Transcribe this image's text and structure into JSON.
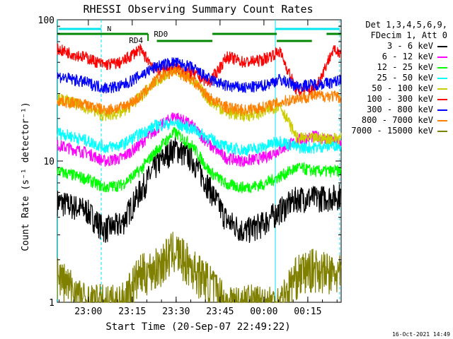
{
  "chart_data": {
    "type": "line",
    "title": "RHESSI Observing Summary Count Rates",
    "xlabel": "Start Time (20-Sep-07 22:49:22)",
    "ylabel": "Count Rate (s⁻¹ detector⁻¹)",
    "yscale": "log",
    "ylim": [
      1,
      100
    ],
    "y_ticks": [
      "1",
      "10",
      "100"
    ],
    "x_ticks": [
      "23:00",
      "23:15",
      "23:30",
      "23:45",
      "00:00",
      "00:15"
    ],
    "x_tick_minutes": [
      10.6,
      25.6,
      40.6,
      55.6,
      70.6,
      85.6
    ],
    "xlim_minutes": [
      0,
      97
    ],
    "footer_date": "16-Oct-2021 14:49",
    "legend_header": [
      "Det 1,3,4,5,6,9,",
      "FDecim 1, Att 0"
    ],
    "annotations": {
      "night_label": "N",
      "rd0_label": "RD0",
      "rd4_label": "RD4"
    },
    "series": [
      {
        "name": "3 - 6 keV",
        "color": "#000000",
        "x": [
          0,
          10,
          16,
          22,
          28,
          34,
          40,
          46,
          52,
          58,
          64,
          70,
          76,
          82,
          88,
          94,
          97
        ],
        "y": [
          5.2,
          4.5,
          3.3,
          3.6,
          6.0,
          9.5,
          12.5,
          10.5,
          6.5,
          3.8,
          3.2,
          3.6,
          4.5,
          5.5,
          5.5,
          5.6,
          5.8
        ]
      },
      {
        "name": "6 - 12 keV",
        "color": "#ff00ff",
        "x": [
          0,
          10,
          16,
          22,
          28,
          34,
          40,
          46,
          52,
          58,
          64,
          70,
          76,
          82,
          88,
          94,
          97
        ],
        "y": [
          13,
          11.5,
          10,
          10.5,
          13,
          17,
          21,
          18,
          13,
          10.5,
          10,
          10.5,
          12,
          14,
          15,
          14,
          13.5
        ]
      },
      {
        "name": "12 - 25 keV",
        "color": "#00ff00",
        "x": [
          0,
          10,
          16,
          22,
          28,
          34,
          40,
          46,
          52,
          58,
          64,
          70,
          76,
          82,
          88,
          94,
          97
        ],
        "y": [
          8.5,
          7.5,
          6.5,
          6.8,
          8.5,
          12,
          16,
          13,
          8.5,
          6.8,
          6.5,
          6.8,
          7.8,
          9,
          8.5,
          8.5,
          8.5
        ]
      },
      {
        "name": "25 - 50 keV",
        "color": "#00ffff",
        "x": [
          0,
          10,
          16,
          22,
          28,
          34,
          40,
          46,
          52,
          58,
          64,
          70,
          76,
          82,
          88,
          94,
          97
        ],
        "y": [
          16,
          14,
          12.5,
          13,
          15.5,
          18,
          18.5,
          17,
          14.5,
          12.5,
          12,
          12.5,
          14,
          12.5,
          12.5,
          13,
          13
        ]
      },
      {
        "name": "50 - 100 keV",
        "color": "#cccc00",
        "x": [
          0,
          10,
          16,
          22,
          28,
          34,
          40,
          46,
          52,
          58,
          64,
          70,
          76,
          82,
          88,
          94,
          97
        ],
        "y": [
          28,
          24,
          21,
          22,
          28,
          37,
          45,
          38,
          27,
          22,
          21,
          22,
          25,
          14.5,
          14.5,
          14.5,
          14.5
        ]
      },
      {
        "name": "100 - 300 keV",
        "color": "#ff0000",
        "x": [
          0,
          10,
          16,
          22,
          28,
          34,
          40,
          46,
          52,
          58,
          64,
          70,
          76,
          82,
          88,
          94,
          97
        ],
        "y": [
          62,
          54,
          48,
          50,
          62,
          44,
          46,
          42,
          36,
          55,
          50,
          52,
          60,
          31,
          32,
          60,
          60
        ]
      },
      {
        "name": "300 - 800 keV",
        "color": "#0000ff",
        "x": [
          0,
          10,
          16,
          22,
          28,
          34,
          40,
          46,
          52,
          58,
          64,
          70,
          76,
          82,
          88,
          94,
          97
        ],
        "y": [
          40,
          36,
          33,
          34,
          40,
          47,
          50,
          46,
          38,
          34,
          33,
          34,
          38,
          34,
          35,
          36,
          38
        ]
      },
      {
        "name": "800 - 7000 keV",
        "color": "#ff8000",
        "x": [
          0,
          10,
          16,
          22,
          28,
          34,
          40,
          46,
          52,
          58,
          64,
          70,
          76,
          82,
          88,
          94,
          97
        ],
        "y": [
          27,
          25,
          23,
          24,
          28,
          38,
          44,
          38,
          28,
          24,
          23,
          24,
          26,
          28,
          29,
          29,
          28
        ]
      },
      {
        "name": "7000 - 15000 keV",
        "color": "#808000",
        "x": [
          0,
          10,
          16,
          22,
          28,
          34,
          40,
          46,
          52,
          58,
          64,
          70,
          76,
          82,
          88,
          94,
          97
        ],
        "y": [
          1.6,
          1.0,
          1.0,
          1.0,
          1.6,
          1.8,
          2.4,
          1.8,
          1.4,
          1.0,
          1.0,
          1.0,
          1.0,
          1.6,
          1.8,
          1.6,
          1.6
        ]
      }
    ]
  }
}
